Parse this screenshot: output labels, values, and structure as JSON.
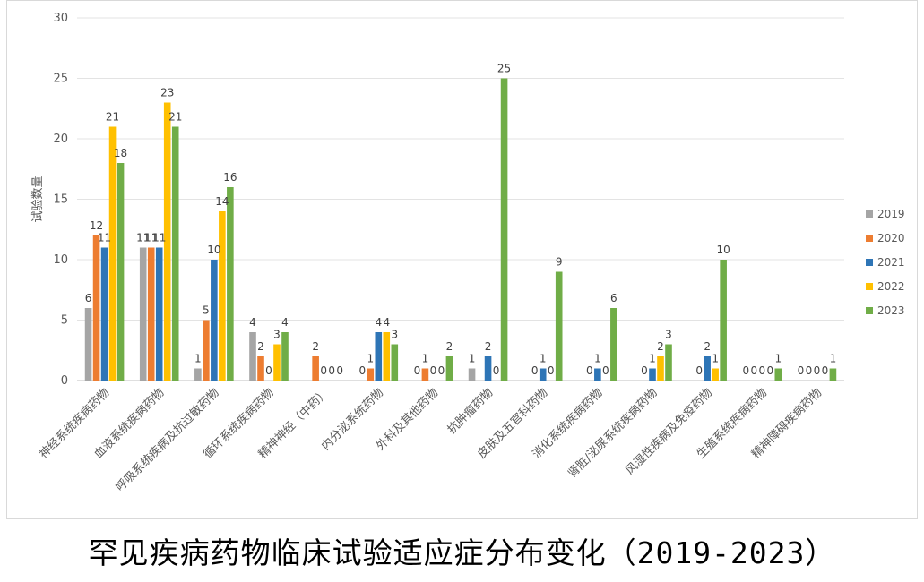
{
  "caption": "罕见疾病药物临床试验适应症分布变化（2019-2023）",
  "chart_data": {
    "type": "bar",
    "title": "",
    "xlabel": "",
    "ylabel": "试验数量",
    "ylim": [
      0,
      30
    ],
    "yticks": [
      0,
      5,
      10,
      15,
      20,
      25,
      30
    ],
    "grid": true,
    "legend_position": "right",
    "categories": [
      "神经系统疾病药物",
      "血液系统疾病药物",
      "呼吸系统疾病及抗过敏药物",
      "循环系统疾病药物",
      "精神神经（中药）",
      "内分泌系统药物",
      "外科及其他药物",
      "抗肿瘤药物",
      "皮肤及五官科药物",
      "消化系统疾病药物",
      "肾脏/泌尿系统疾病药物",
      "风湿性疾病及免疫药物",
      "生殖系统疾病药物",
      "精神障碍疾病药物"
    ],
    "series": [
      {
        "name": "2019",
        "color": "#a5a5a5",
        "values": [
          6,
          11,
          1,
          4,
          null,
          0,
          0,
          1,
          null,
          null,
          null,
          null,
          0,
          0
        ]
      },
      {
        "name": "2020",
        "color": "#ed7d31",
        "values": [
          12,
          11,
          5,
          2,
          2,
          1,
          1,
          null,
          0,
          0,
          0,
          0,
          0,
          0
        ]
      },
      {
        "name": "2021",
        "color": "#2e75b6",
        "values": [
          11,
          11,
          10,
          0,
          0,
          4,
          0,
          2,
          1,
          1,
          1,
          2,
          0,
          0
        ]
      },
      {
        "name": "2022",
        "color": "#ffc000",
        "values": [
          21,
          23,
          14,
          3,
          0,
          4,
          0,
          0,
          0,
          0,
          2,
          1,
          0,
          0
        ]
      },
      {
        "name": "2023",
        "color": "#70ad47",
        "values": [
          18,
          21,
          16,
          4,
          0,
          3,
          2,
          25,
          9,
          6,
          3,
          10,
          1,
          1
        ]
      }
    ]
  }
}
